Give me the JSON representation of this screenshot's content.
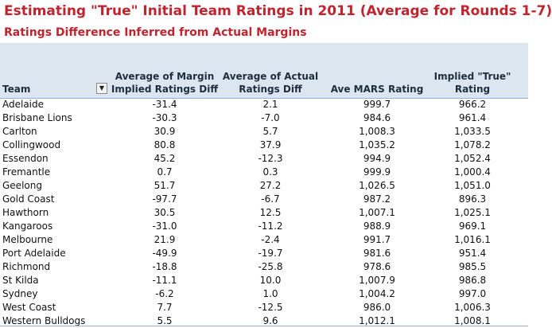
{
  "title": "Estimating \"True\" Initial Team Ratings in 2011 (Average for Rounds 1-7)",
  "subtitle": "Ratings Difference Inferred from Actual Margins",
  "headers": {
    "team": "Team",
    "col1_line1": "Average of Margin",
    "col1_line2": "Implied Ratings Diff",
    "col2_line1": "Average of Actual",
    "col2_line2": "Ratings Diff",
    "col3": "Ave MARS Rating",
    "col4_line1": "Implied \"True\"",
    "col4_line2": "Rating"
  },
  "filter_icon": "dropdown-arrow",
  "rows": [
    {
      "team": "Adelaide",
      "margin_diff": "-31.4",
      "actual_diff": "2.1",
      "mars": "999.7",
      "true_rating": "966.2"
    },
    {
      "team": "Brisbane Lions",
      "margin_diff": "-30.3",
      "actual_diff": "-7.0",
      "mars": "984.6",
      "true_rating": "961.4"
    },
    {
      "team": "Carlton",
      "margin_diff": "30.9",
      "actual_diff": "5.7",
      "mars": "1,008.3",
      "true_rating": "1,033.5"
    },
    {
      "team": "Collingwood",
      "margin_diff": "80.8",
      "actual_diff": "37.9",
      "mars": "1,035.2",
      "true_rating": "1,078.2"
    },
    {
      "team": "Essendon",
      "margin_diff": "45.2",
      "actual_diff": "-12.3",
      "mars": "994.9",
      "true_rating": "1,052.4"
    },
    {
      "team": "Fremantle",
      "margin_diff": "0.7",
      "actual_diff": "0.3",
      "mars": "999.9",
      "true_rating": "1,000.4"
    },
    {
      "team": "Geelong",
      "margin_diff": "51.7",
      "actual_diff": "27.2",
      "mars": "1,026.5",
      "true_rating": "1,051.0"
    },
    {
      "team": "Gold Coast",
      "margin_diff": "-97.7",
      "actual_diff": "-6.7",
      "mars": "987.2",
      "true_rating": "896.3"
    },
    {
      "team": "Hawthorn",
      "margin_diff": "30.5",
      "actual_diff": "12.5",
      "mars": "1,007.1",
      "true_rating": "1,025.1"
    },
    {
      "team": "Kangaroos",
      "margin_diff": "-31.0",
      "actual_diff": "-11.2",
      "mars": "988.9",
      "true_rating": "969.1"
    },
    {
      "team": "Melbourne",
      "margin_diff": "21.9",
      "actual_diff": "-2.4",
      "mars": "991.7",
      "true_rating": "1,016.1"
    },
    {
      "team": "Port Adelaide",
      "margin_diff": "-49.9",
      "actual_diff": "-19.7",
      "mars": "981.6",
      "true_rating": "951.4"
    },
    {
      "team": "Richmond",
      "margin_diff": "-18.8",
      "actual_diff": "-25.8",
      "mars": "978.6",
      "true_rating": "985.5"
    },
    {
      "team": "St Kilda",
      "margin_diff": "-11.1",
      "actual_diff": "10.0",
      "mars": "1,007.9",
      "true_rating": "986.8"
    },
    {
      "team": "Sydney",
      "margin_diff": "-6.2",
      "actual_diff": "1.0",
      "mars": "1,004.2",
      "true_rating": "997.0"
    },
    {
      "team": "West Coast",
      "margin_diff": "7.7",
      "actual_diff": "-12.5",
      "mars": "986.0",
      "true_rating": "1,006.3"
    },
    {
      "team": "Western Bulldogs",
      "margin_diff": "5.5",
      "actual_diff": "9.6",
      "mars": "1,012.1",
      "true_rating": "1,008.1"
    }
  ]
}
